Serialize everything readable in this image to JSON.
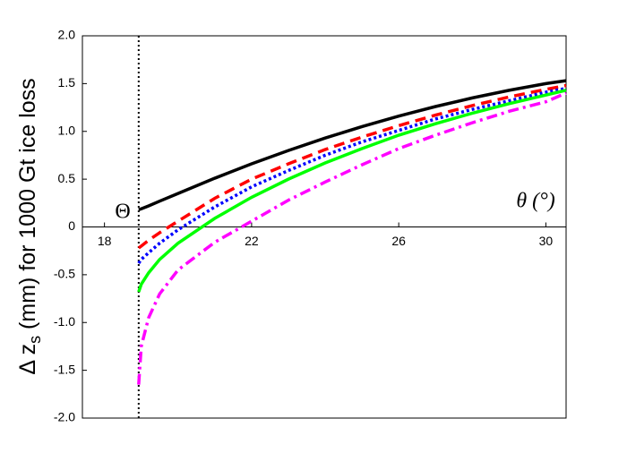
{
  "chart_data": {
    "type": "line",
    "ylabel": "Δ z",
    "ylabel_sub": "s",
    "ylabel_rest": " (mm) for 1000 Gt ice loss",
    "annotations": [
      "Θ",
      "θ (°)"
    ],
    "vline": 18.93,
    "x": [
      18.93,
      19.0,
      19.2,
      19.5,
      20,
      21,
      22,
      23,
      24,
      25,
      26,
      27,
      28,
      29,
      30,
      30.55
    ],
    "series": [
      {
        "color": "#000000",
        "dash": "solid",
        "values": [
          0.18,
          0.19,
          0.22,
          0.27,
          0.35,
          0.51,
          0.66,
          0.8,
          0.93,
          1.05,
          1.16,
          1.26,
          1.35,
          1.43,
          1.5,
          1.53
        ]
      },
      {
        "color": "#ff0000",
        "dash": "dashed",
        "values": [
          -0.22,
          -0.2,
          -0.14,
          -0.06,
          0.06,
          0.3,
          0.5,
          0.66,
          0.81,
          0.94,
          1.06,
          1.17,
          1.27,
          1.36,
          1.44,
          1.48
        ]
      },
      {
        "color": "#0000ff",
        "dash": "dotted",
        "values": [
          -0.38,
          -0.34,
          -0.27,
          -0.17,
          -0.03,
          0.21,
          0.42,
          0.59,
          0.75,
          0.89,
          1.01,
          1.13,
          1.23,
          1.32,
          1.41,
          1.45
        ]
      },
      {
        "color": "#00ff00",
        "dash": "solid",
        "values": [
          -0.68,
          -0.6,
          -0.48,
          -0.34,
          -0.17,
          0.09,
          0.31,
          0.5,
          0.67,
          0.82,
          0.96,
          1.08,
          1.19,
          1.29,
          1.38,
          1.43
        ]
      },
      {
        "color": "#ff00ff",
        "dash": "dashdot",
        "values": [
          -1.65,
          -1.25,
          -0.95,
          -0.7,
          -0.45,
          -0.16,
          0.06,
          0.28,
          0.47,
          0.65,
          0.82,
          0.96,
          1.09,
          1.21,
          1.31,
          1.4
        ]
      }
    ],
    "xlim": [
      17.4,
      30.55
    ],
    "xticks": [
      18,
      22,
      26,
      30
    ],
    "ylim": [
      -2,
      2
    ],
    "yticks": [
      {
        "value": -2,
        "label": "-2.0"
      },
      -1.5,
      {
        "value": -1,
        "label": "-1.0"
      },
      -0.5,
      0,
      0.5,
      {
        "value": 1,
        "label": "1.0"
      },
      1.5,
      {
        "value": 2,
        "label": "2.0"
      }
    ]
  }
}
